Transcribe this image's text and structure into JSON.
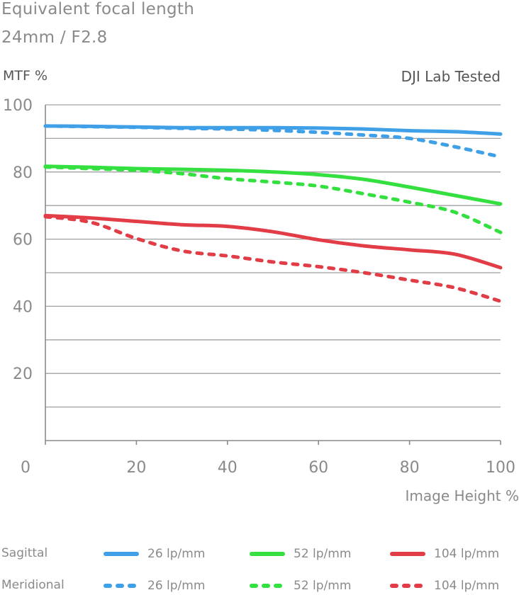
{
  "header": {
    "line1": "Equivalent focal length",
    "line2": "24mm / F2.8"
  },
  "badge": "DJI Lab Tested",
  "chart_data": {
    "type": "line",
    "title": "Equivalent focal length 24mm / F2.8",
    "ylabel": "MTF %",
    "xlabel": "Image Height %",
    "xlim": [
      0,
      100
    ],
    "ylim": [
      0,
      100
    ],
    "xticks": [
      0,
      20,
      40,
      60,
      80,
      100
    ],
    "yticks": [
      20,
      40,
      60,
      80,
      100
    ],
    "grid": true,
    "legend_position": "bottom",
    "legend_rows": [
      "Sagittal",
      "Meridional"
    ],
    "series": [
      {
        "name": "26 lp/mm",
        "group": "Sagittal",
        "style": "solid",
        "color": "#3fa0e8",
        "x": [
          0,
          10,
          20,
          30,
          40,
          50,
          60,
          70,
          80,
          90,
          100
        ],
        "y": [
          93.7,
          93.6,
          93.4,
          93.2,
          93.2,
          93.2,
          93.1,
          92.8,
          92.3,
          92.0,
          91.3
        ]
      },
      {
        "name": "26 lp/mm",
        "group": "Meridional",
        "style": "dotted",
        "color": "#3fa0e8",
        "x": [
          0,
          10,
          20,
          30,
          40,
          50,
          60,
          70,
          80,
          90,
          100
        ],
        "y": [
          93.7,
          93.5,
          93.3,
          93.0,
          92.8,
          92.4,
          91.8,
          91.0,
          90.0,
          87.5,
          84.5
        ]
      },
      {
        "name": "52 lp/mm",
        "group": "Sagittal",
        "style": "solid",
        "color": "#33e040",
        "x": [
          0,
          10,
          20,
          30,
          40,
          50,
          60,
          70,
          80,
          90,
          100
        ],
        "y": [
          81.7,
          81.4,
          81.0,
          80.8,
          80.5,
          80.0,
          79.2,
          77.8,
          75.5,
          73.0,
          70.5
        ]
      },
      {
        "name": "52 lp/mm",
        "group": "Meridional",
        "style": "dotted",
        "color": "#33e040",
        "x": [
          0,
          10,
          20,
          30,
          40,
          50,
          60,
          70,
          80,
          90,
          100
        ],
        "y": [
          81.5,
          81.0,
          80.5,
          79.5,
          78.0,
          77.0,
          75.8,
          73.5,
          71.0,
          68.0,
          62.0
        ]
      },
      {
        "name": "104 lp/mm",
        "group": "Sagittal",
        "style": "solid",
        "color": "#e23c46",
        "x": [
          0,
          10,
          20,
          30,
          40,
          50,
          60,
          70,
          80,
          90,
          100
        ],
        "y": [
          67.0,
          66.3,
          65.3,
          64.3,
          63.8,
          62.2,
          59.8,
          58.0,
          56.8,
          55.5,
          51.5
        ]
      },
      {
        "name": "104 lp/mm",
        "group": "Meridional",
        "style": "dotted",
        "color": "#e23c46",
        "x": [
          0,
          10,
          20,
          30,
          40,
          50,
          60,
          70,
          80,
          90,
          100
        ],
        "y": [
          66.7,
          65.0,
          60.2,
          56.5,
          55.0,
          53.2,
          51.8,
          50.0,
          47.8,
          45.5,
          41.5
        ]
      }
    ]
  }
}
